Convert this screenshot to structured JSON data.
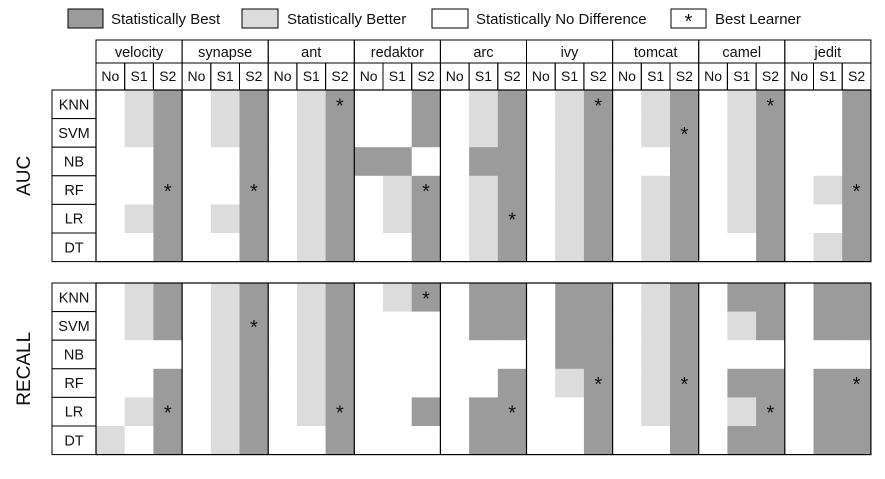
{
  "legend": [
    {
      "key": "best",
      "label": "Statistically Best"
    },
    {
      "key": "better",
      "label": "Statistically Better"
    },
    {
      "key": "nodiff",
      "label": "Statistically No Difference"
    },
    {
      "key": "star",
      "label": "Best Learner",
      "symbol": "*"
    }
  ],
  "colors": {
    "best": "#9b9b9b",
    "better": "#dcdcdc",
    "nodiff": "#ffffff",
    "border": "#000000"
  },
  "chart_data": {
    "type": "heatmap",
    "projects": [
      "velocity",
      "synapse",
      "ant",
      "redaktor",
      "arc",
      "ivy",
      "tomcat",
      "camel",
      "jedit"
    ],
    "settings": [
      "No",
      "S1",
      "S2"
    ],
    "learners": [
      "KNN",
      "SVM",
      "NB",
      "RF",
      "LR",
      "DT"
    ],
    "code_legend": {
      "0": "Statistically No Difference",
      "1": "Statistically Better",
      "2": "Statistically Best"
    },
    "panels": [
      {
        "metric": "AUC",
        "rows": [
          {
            "learner": "KNN",
            "cells": [
              [
                0,
                1,
                2
              ],
              [
                0,
                1,
                2
              ],
              [
                0,
                1,
                2
              ],
              [
                0,
                0,
                2
              ],
              [
                0,
                1,
                2
              ],
              [
                0,
                1,
                2
              ],
              [
                0,
                1,
                2
              ],
              [
                0,
                1,
                2
              ],
              [
                0,
                0,
                2
              ]
            ]
          },
          {
            "learner": "SVM",
            "cells": [
              [
                0,
                1,
                2
              ],
              [
                0,
                1,
                2
              ],
              [
                0,
                1,
                2
              ],
              [
                0,
                0,
                2
              ],
              [
                0,
                1,
                2
              ],
              [
                0,
                1,
                2
              ],
              [
                0,
                1,
                2
              ],
              [
                0,
                1,
                2
              ],
              [
                0,
                0,
                2
              ]
            ]
          },
          {
            "learner": "NB",
            "cells": [
              [
                0,
                0,
                2
              ],
              [
                0,
                0,
                2
              ],
              [
                0,
                1,
                2
              ],
              [
                2,
                2,
                0
              ],
              [
                0,
                2,
                2
              ],
              [
                0,
                1,
                2
              ],
              [
                0,
                0,
                2
              ],
              [
                0,
                1,
                2
              ],
              [
                0,
                0,
                2
              ]
            ]
          },
          {
            "learner": "RF",
            "cells": [
              [
                0,
                0,
                2
              ],
              [
                0,
                0,
                2
              ],
              [
                0,
                1,
                2
              ],
              [
                0,
                1,
                2
              ],
              [
                0,
                1,
                2
              ],
              [
                0,
                1,
                2
              ],
              [
                0,
                1,
                2
              ],
              [
                0,
                1,
                2
              ],
              [
                0,
                1,
                2
              ]
            ]
          },
          {
            "learner": "LR",
            "cells": [
              [
                0,
                1,
                2
              ],
              [
                0,
                1,
                2
              ],
              [
                0,
                1,
                2
              ],
              [
                0,
                1,
                2
              ],
              [
                0,
                1,
                2
              ],
              [
                0,
                1,
                2
              ],
              [
                0,
                1,
                2
              ],
              [
                0,
                1,
                2
              ],
              [
                0,
                0,
                2
              ]
            ]
          },
          {
            "learner": "DT",
            "cells": [
              [
                0,
                0,
                2
              ],
              [
                0,
                0,
                2
              ],
              [
                0,
                1,
                2
              ],
              [
                0,
                0,
                2
              ],
              [
                0,
                1,
                2
              ],
              [
                0,
                1,
                2
              ],
              [
                0,
                1,
                2
              ],
              [
                0,
                0,
                2
              ],
              [
                0,
                1,
                2
              ]
            ]
          }
        ],
        "best_learner": [
          {
            "project": "velocity",
            "learner": "RF",
            "setting": "S2"
          },
          {
            "project": "synapse",
            "learner": "RF",
            "setting": "S2"
          },
          {
            "project": "ant",
            "learner": "KNN",
            "setting": "S2"
          },
          {
            "project": "redaktor",
            "learner": "RF",
            "setting": "S2"
          },
          {
            "project": "arc",
            "learner": "LR",
            "setting": "S2"
          },
          {
            "project": "ivy",
            "learner": "KNN",
            "setting": "S2"
          },
          {
            "project": "tomcat",
            "learner": "SVM",
            "setting": "S2"
          },
          {
            "project": "camel",
            "learner": "KNN",
            "setting": "S2"
          },
          {
            "project": "jedit",
            "learner": "RF",
            "setting": "S2"
          }
        ]
      },
      {
        "metric": "RECALL",
        "rows": [
          {
            "learner": "KNN",
            "cells": [
              [
                0,
                1,
                2
              ],
              [
                0,
                1,
                2
              ],
              [
                0,
                1,
                2
              ],
              [
                0,
                1,
                2
              ],
              [
                0,
                2,
                2
              ],
              [
                0,
                2,
                2
              ],
              [
                0,
                1,
                2
              ],
              [
                0,
                2,
                2
              ],
              [
                0,
                2,
                2
              ]
            ]
          },
          {
            "learner": "SVM",
            "cells": [
              [
                0,
                1,
                2
              ],
              [
                0,
                1,
                2
              ],
              [
                0,
                1,
                2
              ],
              [
                0,
                0,
                0
              ],
              [
                0,
                2,
                2
              ],
              [
                0,
                2,
                2
              ],
              [
                0,
                1,
                2
              ],
              [
                0,
                1,
                2
              ],
              [
                0,
                2,
                2
              ]
            ]
          },
          {
            "learner": "NB",
            "cells": [
              [
                0,
                0,
                0
              ],
              [
                0,
                1,
                2
              ],
              [
                0,
                1,
                2
              ],
              [
                0,
                0,
                0
              ],
              [
                0,
                0,
                0
              ],
              [
                0,
                2,
                2
              ],
              [
                0,
                1,
                2
              ],
              [
                0,
                0,
                0
              ],
              [
                0,
                0,
                0
              ]
            ]
          },
          {
            "learner": "RF",
            "cells": [
              [
                0,
                0,
                2
              ],
              [
                0,
                1,
                2
              ],
              [
                0,
                1,
                2
              ],
              [
                0,
                0,
                0
              ],
              [
                0,
                0,
                2
              ],
              [
                0,
                1,
                2
              ],
              [
                0,
                1,
                2
              ],
              [
                0,
                2,
                2
              ],
              [
                0,
                2,
                2
              ]
            ]
          },
          {
            "learner": "LR",
            "cells": [
              [
                0,
                1,
                2
              ],
              [
                0,
                1,
                2
              ],
              [
                0,
                1,
                2
              ],
              [
                0,
                0,
                2
              ],
              [
                0,
                2,
                2
              ],
              [
                0,
                0,
                2
              ],
              [
                0,
                1,
                2
              ],
              [
                0,
                1,
                2
              ],
              [
                0,
                2,
                2
              ]
            ]
          },
          {
            "learner": "DT",
            "cells": [
              [
                1,
                0,
                2
              ],
              [
                0,
                1,
                2
              ],
              [
                0,
                0,
                2
              ],
              [
                0,
                0,
                0
              ],
              [
                0,
                2,
                2
              ],
              [
                0,
                0,
                2
              ],
              [
                0,
                0,
                2
              ],
              [
                0,
                2,
                2
              ],
              [
                0,
                2,
                2
              ]
            ]
          }
        ],
        "best_learner": [
          {
            "project": "redaktor",
            "learner": "KNN",
            "setting": "S2"
          },
          {
            "project": "synapse",
            "learner": "SVM",
            "setting": "S2"
          },
          {
            "project": "ivy",
            "learner": "RF",
            "setting": "S2"
          },
          {
            "project": "tomcat",
            "learner": "RF",
            "setting": "S2"
          },
          {
            "project": "jedit",
            "learner": "RF",
            "setting": "S2"
          },
          {
            "project": "velocity",
            "learner": "LR",
            "setting": "S2"
          },
          {
            "project": "ant",
            "learner": "LR",
            "setting": "S2"
          },
          {
            "project": "arc",
            "learner": "LR",
            "setting": "S2"
          },
          {
            "project": "camel",
            "learner": "LR",
            "setting": "S2"
          }
        ]
      }
    ]
  }
}
